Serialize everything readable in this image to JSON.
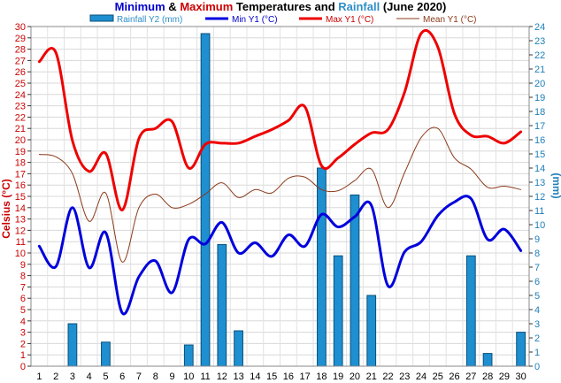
{
  "chart_data": {
    "type": "line",
    "title": {
      "parts": [
        {
          "text": "Minimum",
          "color": "#0000cc"
        },
        {
          "text": " & ",
          "color": "#000000"
        },
        {
          "text": "Maximum",
          "color": "#cc0000"
        },
        {
          "text": " Temperatures and ",
          "color": "#000000"
        },
        {
          "text": "Rainfall",
          "color": "#2e8fc8"
        },
        {
          "text": " (June 2020)",
          "color": "#000000"
        }
      ]
    },
    "ylabel_left": "Celsius (°C)",
    "ylabel_right": "(mm)",
    "ylim_left": [
      0,
      30
    ],
    "ylim_right": [
      0,
      24
    ],
    "x": [
      1,
      2,
      3,
      4,
      5,
      6,
      7,
      8,
      9,
      10,
      11,
      12,
      13,
      14,
      15,
      16,
      17,
      18,
      19,
      20,
      21,
      22,
      23,
      24,
      25,
      26,
      27,
      28,
      29,
      30
    ],
    "y_ticks_left": [
      0,
      1,
      2,
      3,
      4,
      5,
      6,
      7,
      8,
      9,
      10,
      11,
      12,
      13,
      14,
      15,
      16,
      17,
      18,
      19,
      20,
      21,
      22,
      23,
      24,
      25,
      26,
      27,
      28,
      29,
      30
    ],
    "y_ticks_right": [
      0,
      1,
      2,
      3,
      4,
      5,
      6,
      7,
      8,
      9,
      10,
      11,
      12,
      13,
      14,
      15,
      16,
      17,
      18,
      19,
      20,
      21,
      22,
      23,
      24
    ],
    "legend_position": "top",
    "series": [
      {
        "name": "Rainfall Y2 (mm)",
        "type": "bar",
        "axis": "right",
        "color": "#1e8fd0",
        "values": [
          0,
          0,
          3,
          0,
          1.7,
          0,
          0,
          0,
          0,
          1.5,
          23.5,
          8.6,
          2.5,
          0,
          0,
          0,
          0,
          14,
          7.8,
          12.1,
          5,
          0,
          0,
          0,
          0,
          0,
          7.8,
          0.9,
          0,
          2.4
        ]
      },
      {
        "name": "Min Y1 (°C)",
        "type": "line",
        "axis": "left",
        "color": "#0000dd",
        "values": [
          10.6,
          8.8,
          14.0,
          8.7,
          11.8,
          4.7,
          7.9,
          9.3,
          6.5,
          11.2,
          10.8,
          12.7,
          10.0,
          10.9,
          9.7,
          11.6,
          10.6,
          13.4,
          12.3,
          13.2,
          14.2,
          7.1,
          10.1,
          11.0,
          13.3,
          14.5,
          14.8,
          11.2,
          12.1,
          10.2
        ]
      },
      {
        "name": "Max Y1 (°C)",
        "type": "line",
        "axis": "left",
        "color": "#ee0000",
        "values": [
          26.9,
          27.7,
          19.9,
          17.2,
          18.8,
          13.8,
          20.1,
          21.0,
          21.6,
          17.5,
          19.6,
          19.7,
          19.7,
          20.3,
          20.9,
          21.7,
          22.9,
          17.7,
          18.4,
          19.6,
          20.6,
          20.9,
          24.2,
          29.4,
          28.2,
          22.3,
          20.4,
          20.3,
          19.7,
          20.7
        ]
      },
      {
        "name": "Mean Y1 (°C)",
        "type": "line",
        "axis": "left",
        "color": "#8b3a1a",
        "values": [
          18.7,
          18.5,
          17.0,
          12.8,
          15.3,
          9.2,
          14.0,
          15.2,
          14.0,
          14.3,
          15.2,
          16.2,
          14.9,
          15.6,
          15.3,
          16.6,
          16.7,
          15.6,
          15.5,
          16.4,
          17.4,
          14.0,
          17.1,
          20.2,
          21.0,
          18.4,
          17.4,
          15.8,
          15.9,
          15.6
        ]
      }
    ]
  }
}
